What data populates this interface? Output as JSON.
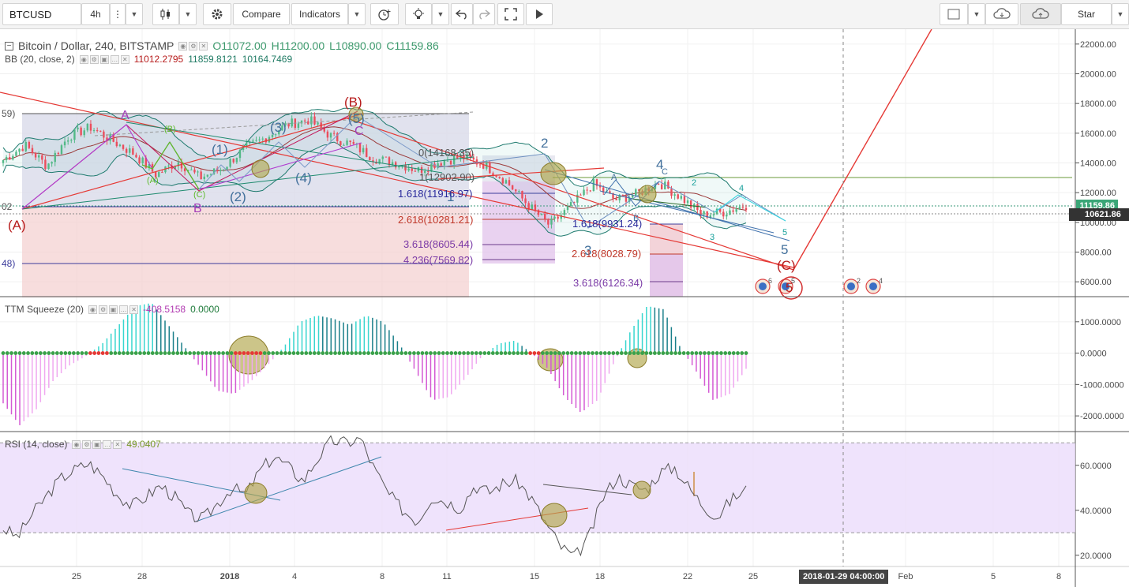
{
  "toolbar": {
    "symbol": "BTCUSD",
    "interval": "4h",
    "compare_label": "Compare",
    "indicators_label": "Indicators",
    "star_label": "Star"
  },
  "legend": {
    "title": "Bitcoin / Dollar, 240, BITSTAMP",
    "o_label": "O",
    "o_value": "11072.00",
    "h_label": "H",
    "h_value": "11200.00",
    "l_label": "L",
    "l_value": "10890.00",
    "c_label": "C",
    "c_value": "11159.86",
    "bb_label": "BB (20, close, 2)",
    "bb_basis": "11012.2795",
    "bb_upper": "11859.8121",
    "bb_lower": "10164.7469"
  },
  "squeeze_legend": {
    "label": "TTM Squeeze (20)",
    "v1": "-408.5158",
    "v2": "0.0000"
  },
  "rsi_legend": {
    "label": "RSI (14, close)",
    "value": "49.0407"
  },
  "price_tags": {
    "current": "10621.86",
    "last": "11159.86"
  },
  "crosshair_time": "2018-01-29 04:00:00",
  "colors": {
    "up": "#53b987",
    "down": "#eb4d5c",
    "bb": "#26a69a",
    "bb_basis": "#c2185b",
    "elliott_red": "#e53935",
    "elliott_purple": "#9c27b0",
    "elliott_blue": "#42709c",
    "elliott_green": "#5fbb2c",
    "squeeze_pos": "#3ad5d0",
    "squeeze_neg": "#d15fd1",
    "rsi_band": "#e1d2f7"
  },
  "chart_data": [
    {
      "type": "candlestick",
      "title": "Bitcoin / Dollar, 240, BITSTAMP",
      "ylim": [
        5000,
        23000
      ],
      "y_ticks": [
        "22000.00",
        "20000.00",
        "18000.00",
        "16000.00",
        "14000.00",
        "12000.00",
        "10000.00",
        "8000.00",
        "6000.00"
      ],
      "x_ticks": [
        "25",
        "28",
        "2018",
        "4",
        "8",
        "11",
        "15",
        "18",
        "22",
        "25",
        "Feb",
        "5",
        "8"
      ],
      "close_path": [
        14200,
        15200,
        13800,
        15800,
        16400,
        15500,
        14600,
        13200,
        14100,
        13000,
        13600,
        14900,
        15700,
        16600,
        16900,
        15800,
        15200,
        14300,
        14000,
        13500,
        14100,
        14400,
        13900,
        12800,
        11200,
        9800,
        11100,
        12600,
        11500,
        11900,
        12700,
        11700,
        10500,
        10700,
        11160
      ],
      "fib_levels_left": [
        {
          "label": "0(14168.35)",
          "value": 14168.35
        },
        {
          "label": "1(12902.90)",
          "value": 12902.9
        },
        {
          "label": "1.618(11916.97)",
          "value": 11916.97
        },
        {
          "label": "2.618(10281.21)",
          "value": 10281.21
        },
        {
          "label": "3.618(8605.44)",
          "value": 8605.44
        },
        {
          "label": "4.236(7569.82)",
          "value": 7569.82
        }
      ],
      "fib_levels_right": [
        {
          "label": "1.618(9931.24)",
          "value": 9931.24
        },
        {
          "label": "2.618(8028.79)",
          "value": 8028.79
        },
        {
          "label": "3.618(6126.34)",
          "value": 6126.34
        }
      ],
      "wave_labels": [
        "(A)",
        "(B)",
        "(C)",
        "A",
        "B",
        "C",
        "(B)",
        "(A)",
        "(C)",
        "(1)",
        "(2)",
        "(3)",
        "(4)",
        "(5)",
        "1",
        "2",
        "3",
        "4",
        "5",
        "A",
        "B",
        "C",
        "2",
        "3",
        "4",
        "5",
        "5"
      ],
      "left_edge_labels": [
        "59)",
        "02",
        "48)"
      ],
      "event_badges": [
        "6",
        "5",
        "2",
        "4"
      ]
    },
    {
      "type": "bar",
      "title": "TTM Squeeze (20)",
      "ylim": [
        -2500,
        1800
      ],
      "y_ticks": [
        "1000.0000",
        "0.0000",
        "-1000.0000",
        "-2000.0000"
      ],
      "values": [
        -1600,
        -2300,
        -1800,
        -900,
        -400,
        -100,
        300,
        900,
        1500,
        1600,
        900,
        200,
        -500,
        -1200,
        -1300,
        -900,
        -400,
        200,
        1000,
        1200,
        1100,
        900,
        1200,
        1000,
        300,
        -600,
        -1500,
        -1400,
        -800,
        -100,
        300,
        400,
        0,
        -500,
        -1400,
        -1900,
        -1500,
        -300,
        700,
        1500,
        1400,
        200,
        -600,
        -1500,
        -1300,
        -500
      ]
    },
    {
      "type": "line",
      "title": "RSI (14, close)",
      "ylim": [
        15,
        75
      ],
      "band": [
        30,
        70
      ],
      "y_ticks": [
        "60.0000",
        "40.0000",
        "20.0000"
      ],
      "values": [
        32,
        28,
        38,
        46,
        54,
        58,
        61,
        55,
        47,
        42,
        46,
        51,
        46,
        38,
        36,
        43,
        50,
        47,
        58,
        64,
        59,
        53,
        63,
        71,
        70,
        72,
        58,
        47,
        40,
        35,
        46,
        44,
        41,
        51,
        48,
        52,
        53,
        45,
        34,
        24,
        19,
        28,
        46,
        55,
        51,
        49,
        57,
        59,
        50,
        42,
        37,
        45,
        49
      ]
    }
  ]
}
